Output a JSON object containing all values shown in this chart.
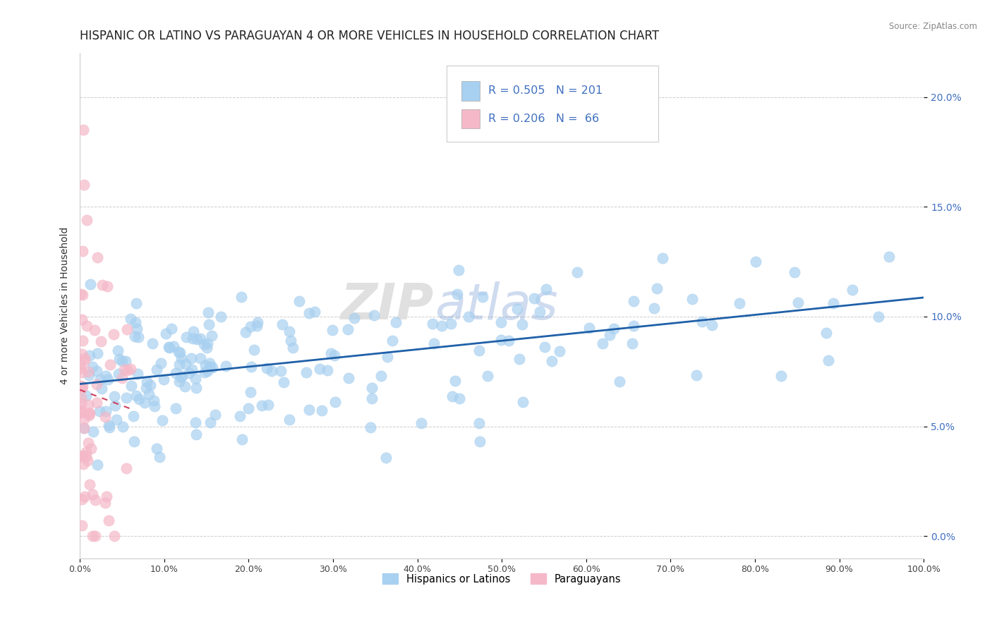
{
  "title": "HISPANIC OR LATINO VS PARAGUAYAN 4 OR MORE VEHICLES IN HOUSEHOLD CORRELATION CHART",
  "source": "Source: ZipAtlas.com",
  "ylabel": "4 or more Vehicles in Household",
  "xlim": [
    0.0,
    1.0
  ],
  "ylim": [
    -0.01,
    0.22
  ],
  "xticks": [
    0.0,
    0.1,
    0.2,
    0.3,
    0.4,
    0.5,
    0.6,
    0.7,
    0.8,
    0.9,
    1.0
  ],
  "xticklabels": [
    "0.0%",
    "10.0%",
    "20.0%",
    "30.0%",
    "40.0%",
    "50.0%",
    "60.0%",
    "70.0%",
    "80.0%",
    "90.0%",
    "100.0%"
  ],
  "yticks": [
    0.0,
    0.05,
    0.1,
    0.15,
    0.2
  ],
  "yticklabels": [
    "0.0%",
    "5.0%",
    "10.0%",
    "15.0%",
    "20.0%"
  ],
  "R_blue": 0.505,
  "N_blue": 201,
  "R_pink": 0.206,
  "N_pink": 66,
  "blue_color": "#a8d0f0",
  "pink_color": "#f5b8c8",
  "blue_line_color": "#2060a8",
  "pink_line_color": "#d04060",
  "legend_label_blue": "Hispanics or Latinos",
  "legend_label_pink": "Paraguayans",
  "title_fontsize": 12,
  "axis_label_fontsize": 10,
  "tick_fontsize": 9,
  "watermark": "ZIPAtlas",
  "stat_color": "#4070c0"
}
